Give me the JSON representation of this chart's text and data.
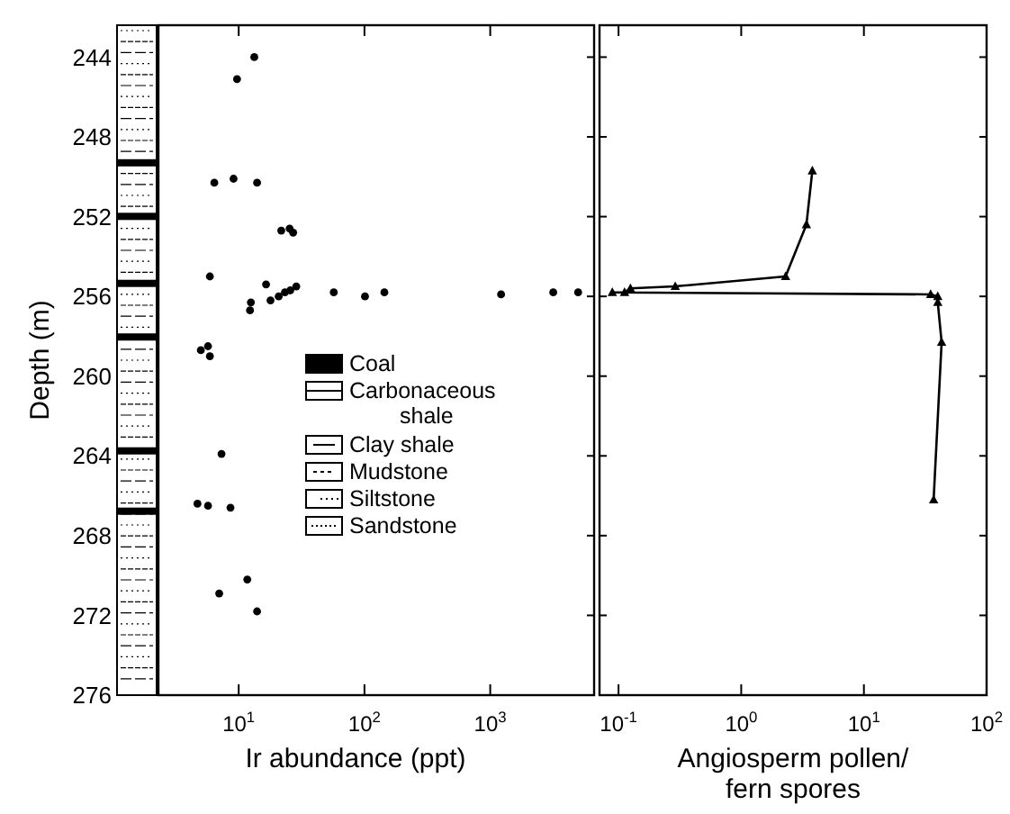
{
  "chart_data": [
    {
      "type": "scatter",
      "xlabel": "Ir abundance (ppt)",
      "ylabel": "Depth (m)",
      "log": "x",
      "marker": "circle",
      "grid": false,
      "xlim": [
        2.3,
        6700
      ],
      "xticks": [
        {
          "value": 10,
          "label": "10$^{1}$"
        },
        {
          "value": 100,
          "label": "10$^{2}$"
        },
        {
          "value": 1000,
          "label": "10$^{3}$"
        }
      ],
      "ylim": [
        276,
        242.4
      ],
      "yticks": [
        244,
        248,
        252,
        256,
        260,
        264,
        268,
        272,
        276
      ],
      "series": [
        {
          "color": "#000000",
          "x": [
            13.3,
            9.7,
            6.4,
            9.1,
            14.0,
            21.8,
            25.4,
            27.1,
            5.9,
            16.5,
            12.5,
            12.3,
            17.9,
            20.8,
            23.3,
            25.7,
            28.7,
            57,
            101,
            144,
            1220,
            3170,
            5000,
            5.0,
            5.7,
            5.9,
            7.3,
            4.7,
            5.7,
            8.6,
            11.7,
            7.0,
            14.0
          ],
          "values": [
            244.0,
            245.1,
            250.3,
            250.1,
            250.3,
            252.7,
            252.6,
            252.8,
            255.0,
            255.4,
            256.3,
            256.7,
            256.2,
            256.0,
            255.8,
            255.7,
            255.5,
            255.8,
            256.0,
            255.8,
            255.9,
            255.8,
            255.8,
            258.7,
            258.5,
            259.0,
            263.9,
            266.4,
            266.5,
            266.6,
            270.2,
            270.9,
            271.8
          ]
        }
      ],
      "annotations": [
        "Coal",
        "Carbonaceous shale",
        "Clay shale",
        "Mudstone",
        "Siltstone",
        "Sandstone"
      ]
    },
    {
      "type": "line",
      "xlabel": "Angiosperm pollen/fern spores",
      "log": "x",
      "marker": "triangle",
      "line_style": "solid",
      "grid": false,
      "tick_labels": "x",
      "xlim": [
        0.07,
        100
      ],
      "xticks": [
        {
          "value": 0.1,
          "label": "10$^{-1}$"
        },
        {
          "value": 1,
          "label": "10$^{0}$"
        },
        {
          "value": 10,
          "label": "10$^{1}$"
        },
        {
          "value": 100,
          "label": "10$^{2}$"
        }
      ],
      "ylim": [
        276,
        242.4
      ],
      "yticks": [
        244,
        248,
        252,
        256,
        260,
        264,
        268,
        272,
        276
      ],
      "series": [
        {
          "color": "#000000",
          "x": [
            3.8,
            3.4,
            2.3,
            0.29,
            0.125,
            0.112,
            0.089,
            35,
            40,
            40,
            43,
            37
          ],
          "values": [
            249.7,
            252.4,
            255.0,
            255.5,
            255.6,
            255.8,
            255.8,
            255.9,
            256.0,
            256.3,
            258.3,
            266.2
          ]
        }
      ]
    }
  ]
}
